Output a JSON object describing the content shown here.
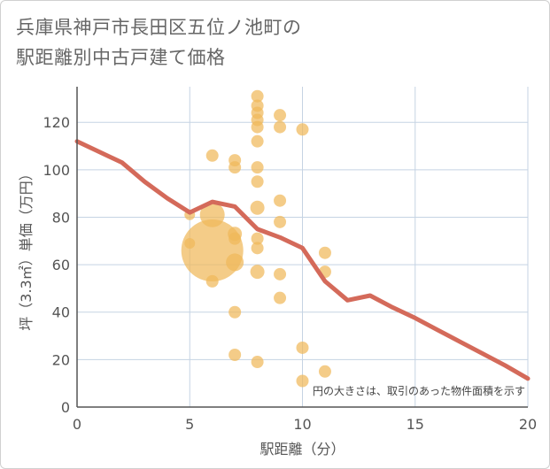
{
  "title_line1": "兵庫県神戸市長田区五位ノ池町の",
  "title_line2": "駅距離別中古戸建て価格",
  "chart_data": {
    "type": "scatter",
    "xlabel": "駅距離（分）",
    "ylabel": "坪（3.3㎡）単価（万円）",
    "xlim": [
      0,
      20
    ],
    "ylim": [
      0,
      135
    ],
    "x_ticks": [
      "0",
      "5",
      "10",
      "15",
      "20"
    ],
    "y_ticks": [
      "0",
      "20",
      "40",
      "60",
      "80",
      "100",
      "120"
    ],
    "x_tick_values": [
      0,
      5,
      10,
      15,
      20
    ],
    "y_tick_values": [
      0,
      20,
      40,
      60,
      80,
      100,
      120
    ],
    "grid": true,
    "note": "円の大きさは、取引のあった物件面積を示す",
    "colors": {
      "bubble": "#F0B95A",
      "line": "#D46A5A",
      "grid": "#C5D3E3",
      "axis": "#555555"
    },
    "bubbles": [
      {
        "x": 5,
        "y": 81,
        "size": 6
      },
      {
        "x": 5,
        "y": 69,
        "size": 6
      },
      {
        "x": 6,
        "y": 106,
        "size": 7
      },
      {
        "x": 6,
        "y": 81,
        "size": 14
      },
      {
        "x": 6,
        "y": 66,
        "size": 35
      },
      {
        "x": 6,
        "y": 53,
        "size": 7
      },
      {
        "x": 7,
        "y": 104,
        "size": 7
      },
      {
        "x": 7,
        "y": 101,
        "size": 7
      },
      {
        "x": 7,
        "y": 73,
        "size": 8
      },
      {
        "x": 7,
        "y": 71,
        "size": 7
      },
      {
        "x": 7,
        "y": 61,
        "size": 10
      },
      {
        "x": 7,
        "y": 40,
        "size": 7
      },
      {
        "x": 7,
        "y": 22,
        "size": 7
      },
      {
        "x": 8,
        "y": 131,
        "size": 7
      },
      {
        "x": 8,
        "y": 127,
        "size": 7
      },
      {
        "x": 8,
        "y": 124,
        "size": 7
      },
      {
        "x": 8,
        "y": 121,
        "size": 7
      },
      {
        "x": 8,
        "y": 118,
        "size": 7
      },
      {
        "x": 8,
        "y": 112,
        "size": 7
      },
      {
        "x": 8,
        "y": 101,
        "size": 7
      },
      {
        "x": 8,
        "y": 95,
        "size": 7
      },
      {
        "x": 8,
        "y": 84,
        "size": 8
      },
      {
        "x": 8,
        "y": 71,
        "size": 7
      },
      {
        "x": 8,
        "y": 67,
        "size": 7
      },
      {
        "x": 8,
        "y": 57,
        "size": 8
      },
      {
        "x": 8,
        "y": 19,
        "size": 7
      },
      {
        "x": 9,
        "y": 123,
        "size": 7
      },
      {
        "x": 9,
        "y": 118,
        "size": 7
      },
      {
        "x": 9,
        "y": 87,
        "size": 7
      },
      {
        "x": 9,
        "y": 78,
        "size": 7
      },
      {
        "x": 9,
        "y": 56,
        "size": 7
      },
      {
        "x": 9,
        "y": 46,
        "size": 7
      },
      {
        "x": 10,
        "y": 117,
        "size": 7
      },
      {
        "x": 10,
        "y": 25,
        "size": 7
      },
      {
        "x": 10,
        "y": 11,
        "size": 7
      },
      {
        "x": 11,
        "y": 65,
        "size": 7
      },
      {
        "x": 11,
        "y": 57,
        "size": 7
      },
      {
        "x": 11,
        "y": 15,
        "size": 7
      }
    ],
    "trend": {
      "x": [
        0,
        2,
        3,
        4,
        5,
        6,
        7,
        8,
        9,
        10,
        11,
        12,
        13,
        14,
        15,
        16,
        17,
        18,
        19,
        20
      ],
      "y": [
        112,
        103,
        95,
        88,
        82,
        86.5,
        84.5,
        75,
        71.5,
        67,
        53,
        45,
        47,
        42,
        37.5,
        32.5,
        27.5,
        22.5,
        17.5,
        12
      ]
    }
  }
}
